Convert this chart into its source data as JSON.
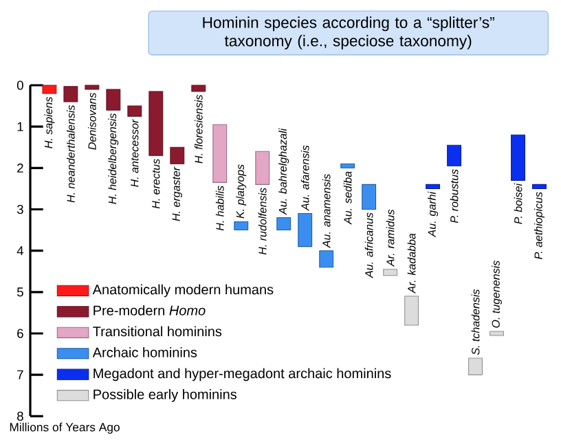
{
  "chart_data": {
    "type": "bar",
    "title": "Hominin species according to a “splitter’s” taxonomy (i.e., speciose taxonomy)",
    "ylabel": "Millions of Years Ago",
    "categories": [
      "H. sapiens",
      "H. neanderthalensis",
      "Denisovans",
      "H. heidelbergensis",
      "H. antecessor",
      "H. erectus",
      "H. ergaster",
      "H. floresiensis",
      "H. habilis",
      "K. platyops",
      "H. rudolfensis",
      "Au. bahrelghazali",
      "Au. afarensis",
      "Au. anamensis",
      "Au. sediba",
      "Au. africanus",
      "Ar. ramidus",
      "Ar. kadabba",
      "Au. garhi",
      "P. robustus",
      "S. tchadensis",
      "O. tugenensis",
      "P. boisei",
      "P. aethiopicus"
    ],
    "series": [
      {
        "name": "Anatomically modern humans",
        "color": "#ff1a1a",
        "values": [
          0.2,
          null,
          null,
          null,
          null,
          null,
          null,
          null,
          null,
          null,
          null,
          null,
          null,
          null,
          null,
          null,
          null,
          null,
          null,
          null,
          null,
          null,
          null,
          null
        ],
        "base": [
          0,
          null,
          null,
          null,
          null,
          null,
          null,
          null,
          null,
          null,
          null,
          null,
          null,
          null,
          null,
          null,
          null,
          null,
          null,
          null,
          null,
          null,
          null,
          null
        ]
      },
      {
        "name": "Pre-modern *Homo*",
        "color": "#8b1a2e",
        "values": [
          null,
          0.37,
          0.1,
          0.5,
          0.25,
          1.55,
          0.4,
          0.15,
          null,
          null,
          null,
          null,
          null,
          null,
          null,
          null,
          null,
          null,
          null,
          null,
          null,
          null,
          null,
          null
        ],
        "base": [
          null,
          0.03,
          0,
          0.1,
          0.5,
          0.15,
          1.5,
          0,
          null,
          null,
          null,
          null,
          null,
          null,
          null,
          null,
          null,
          null,
          null,
          null,
          null,
          null,
          null,
          null
        ]
      },
      {
        "name": "Transitional hominins",
        "color": "#e3a6c4",
        "values": [
          null,
          null,
          null,
          null,
          null,
          null,
          null,
          null,
          1.4,
          null,
          0.8,
          null,
          null,
          null,
          null,
          null,
          null,
          null,
          null,
          null,
          null,
          null,
          null,
          null
        ],
        "base": [
          null,
          null,
          null,
          null,
          null,
          null,
          null,
          null,
          0.95,
          null,
          1.6,
          null,
          null,
          null,
          null,
          null,
          null,
          null,
          null,
          null,
          null,
          null,
          null,
          null
        ]
      },
      {
        "name": "Archaic hominins",
        "color": "#3a8ef0",
        "values": [
          null,
          null,
          null,
          null,
          null,
          null,
          null,
          null,
          null,
          0.2,
          null,
          0.3,
          0.8,
          0.4,
          0.1,
          0.6,
          null,
          null,
          null,
          null,
          null,
          null,
          null,
          null
        ],
        "base": [
          null,
          null,
          null,
          null,
          null,
          null,
          null,
          null,
          null,
          3.3,
          null,
          3.2,
          3.1,
          4.0,
          1.9,
          2.4,
          null,
          null,
          null,
          null,
          null,
          null,
          null,
          null
        ]
      },
      {
        "name": "Megadont and hyper-megadont archaic hominins",
        "color": "#0b2ff0",
        "values": [
          null,
          null,
          null,
          null,
          null,
          null,
          null,
          null,
          null,
          null,
          null,
          null,
          null,
          null,
          null,
          null,
          null,
          null,
          0.1,
          0.5,
          null,
          null,
          1.1,
          0.1
        ],
        "base": [
          null,
          null,
          null,
          null,
          null,
          null,
          null,
          null,
          null,
          null,
          null,
          null,
          null,
          null,
          null,
          null,
          null,
          null,
          2.4,
          1.45,
          null,
          null,
          1.2,
          2.4
        ]
      },
      {
        "name": "Possible early hominins",
        "color": "#dcdcdc",
        "values": [
          null,
          null,
          null,
          null,
          null,
          null,
          null,
          null,
          null,
          null,
          null,
          null,
          null,
          null,
          null,
          null,
          0.15,
          0.7,
          null,
          null,
          0.4,
          0.1,
          null,
          null
        ],
        "base": [
          null,
          null,
          null,
          null,
          null,
          null,
          null,
          null,
          null,
          null,
          null,
          null,
          null,
          null,
          null,
          null,
          4.45,
          5.1,
          null,
          null,
          6.6,
          5.95,
          null,
          null
        ]
      }
    ],
    "ylim": [
      8,
      0
    ],
    "yticks": [
      0,
      1,
      2,
      3,
      4,
      5,
      6,
      7,
      8
    ],
    "legend": "bottom left",
    "tick_labels": "y"
  }
}
